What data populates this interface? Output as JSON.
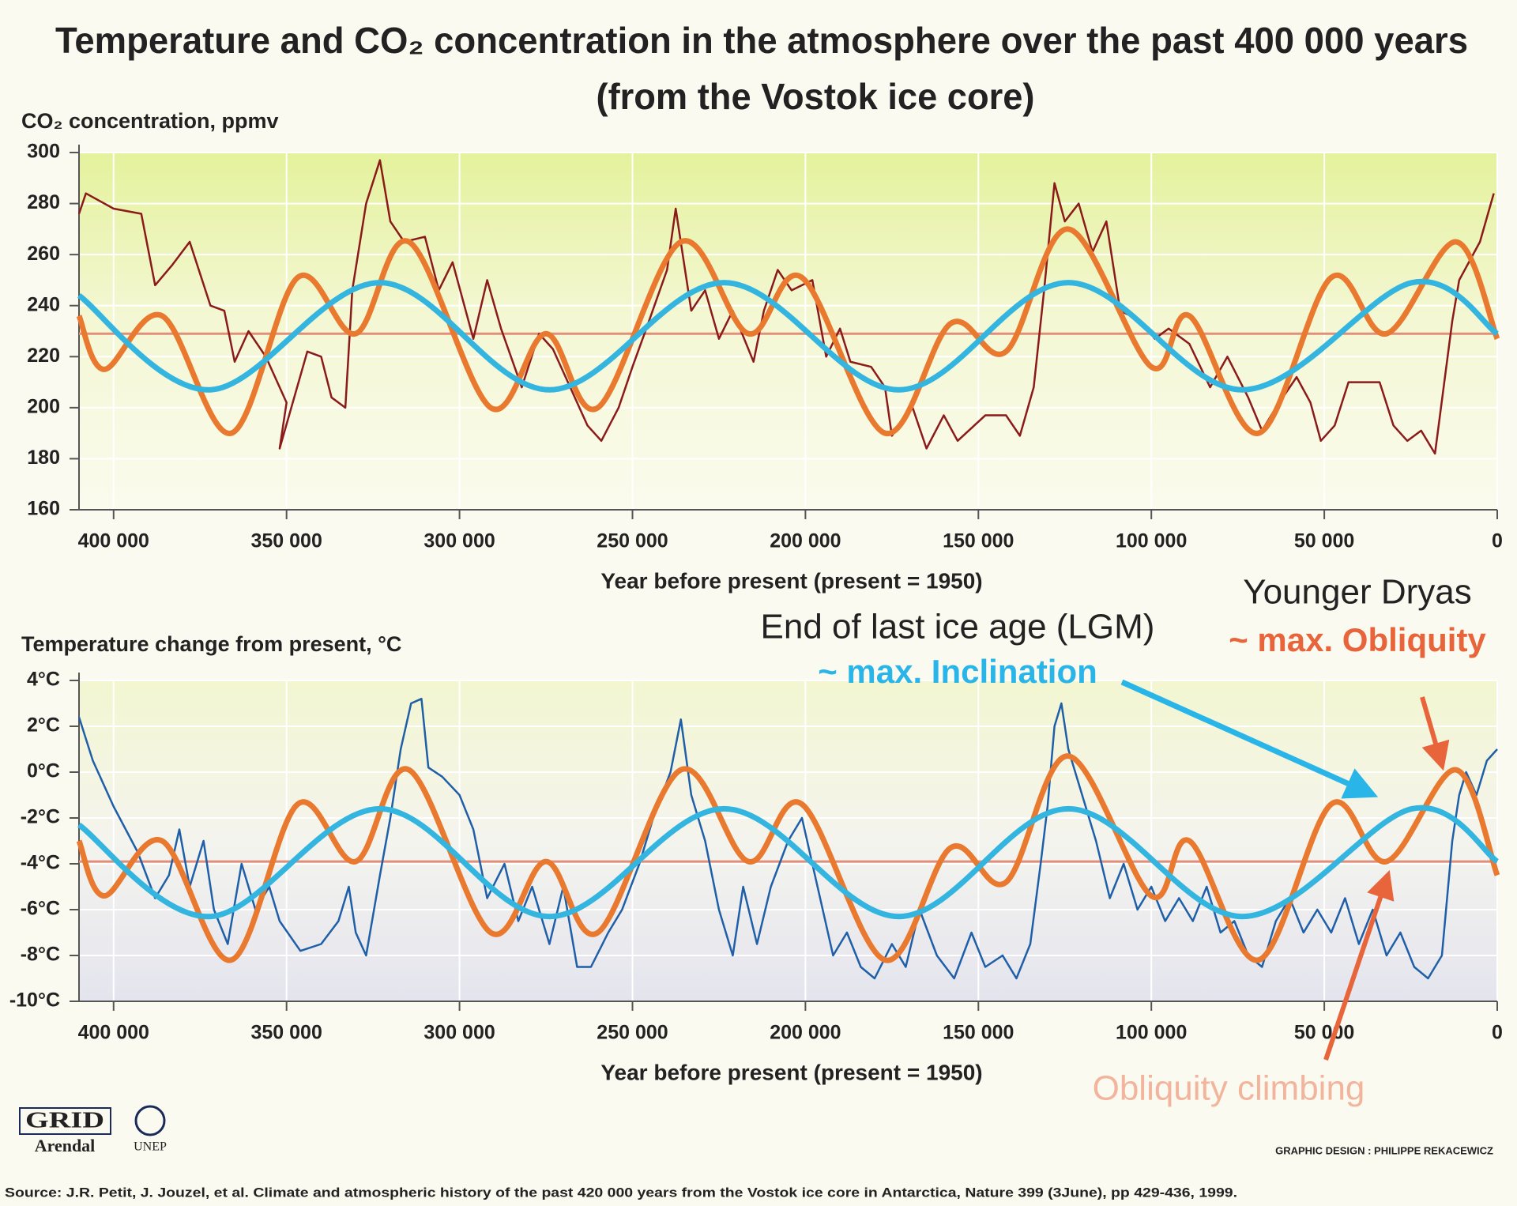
{
  "title": [
    "Temperature and CO₂ concentration in the atmosphere over the past 400 000 years",
    "(from the Vostok ice core)"
  ],
  "chart_data": [
    {
      "type": "line",
      "y_label": "CO₂ concentration, ppmv",
      "x_label": "Year before present (present = 1950)",
      "xlim": [
        410000,
        0
      ],
      "xticks": [
        {
          "value": 400000,
          "label": "400 000"
        },
        {
          "value": 350000,
          "label": "350 000"
        },
        {
          "value": 300000,
          "label": "300 000"
        },
        {
          "value": 250000,
          "label": "250 000"
        },
        {
          "value": 200000,
          "label": "200 000"
        },
        {
          "value": 150000,
          "label": "150 000"
        },
        {
          "value": 100000,
          "label": "100 000"
        },
        {
          "value": 50000,
          "label": "50 000"
        },
        0
      ],
      "ylim": [
        160,
        300
      ],
      "yticks": [
        160,
        180,
        200,
        220,
        240,
        260,
        280,
        300
      ],
      "grid": true,
      "baseline": 229,
      "baseline_color": "#e0907a",
      "series": [
        {
          "color": "#8b1a1a",
          "smooth": false,
          "x": [
            410000,
            408000,
            400000,
            392000,
            388000,
            383000,
            378000,
            372000,
            368000,
            365000,
            361000,
            356000,
            350000,
            352000,
            344000,
            340000,
            337000,
            333000,
            331000,
            327000,
            323000,
            320000,
            316000,
            310000,
            306000,
            302000,
            296000,
            292000,
            288000,
            282000,
            277000,
            273000,
            268000,
            263000,
            259000,
            254000,
            250000,
            246000,
            240000,
            237500,
            233000,
            229000,
            225000,
            221000,
            215000,
            212000,
            208000,
            204000,
            198000,
            194000,
            190000,
            187000,
            181000,
            177000,
            175000,
            169000,
            165000,
            160000,
            156000,
            148000,
            142000,
            138000,
            134000,
            131000,
            128000,
            125000,
            121000,
            117000,
            113000,
            109000,
            103000,
            99000,
            95000,
            89000,
            83000,
            78000,
            72000,
            68000,
            64000,
            58000,
            54000,
            51000,
            47000,
            43000,
            39000,
            34000,
            30000,
            26000,
            22000,
            18000,
            13000,
            11000,
            5000,
            1000
          ],
          "values": [
            276,
            284,
            278,
            276,
            248,
            256,
            265,
            240,
            238,
            218,
            230,
            220,
            202,
            184,
            222,
            220,
            204,
            200,
            246,
            280,
            297,
            273,
            265,
            267,
            246,
            257,
            227,
            250,
            231,
            208,
            229,
            223,
            208,
            193,
            187,
            200,
            216,
            231,
            254,
            278,
            238,
            246,
            227,
            238,
            218,
            238,
            254,
            246,
            250,
            220,
            231,
            218,
            216,
            208,
            189,
            200,
            184,
            197,
            187,
            197,
            197,
            189,
            208,
            246,
            288,
            273,
            280,
            261,
            273,
            238,
            234,
            227,
            231,
            225,
            208,
            220,
            204,
            191,
            200,
            212,
            202,
            187,
            193,
            210,
            210,
            210,
            193,
            187,
            191,
            182,
            234,
            250,
            265,
            284
          ]
        },
        {
          "color": "#e8792f",
          "smooth": true,
          "x": [
            410000,
            402700,
            386000,
            366000,
            346800,
            330000,
            314600,
            291000,
            275000,
            260000,
            236000,
            216500,
            201000,
            177000,
            158000,
            142000,
            124000,
            100000,
            89000,
            69000,
            48000,
            32000,
            12000,
            0
          ],
          "values": [
            236,
            215,
            236,
            190,
            251,
            229,
            265,
            200,
            229,
            200,
            265,
            229,
            251,
            190,
            233,
            222,
            270,
            216,
            236,
            190,
            251,
            229,
            265,
            227
          ]
        },
        {
          "color": "#33b5e0",
          "smooth": true,
          "x": [
            410000,
            372000,
            323000,
            274000,
            223500,
            173000,
            124000,
            73700,
            24700,
            0
          ],
          "values": [
            244,
            207,
            249,
            207,
            249,
            207,
            249,
            207,
            249,
            229
          ]
        }
      ]
    },
    {
      "type": "line",
      "y_label": "Temperature change from present, °C",
      "x_label": "Year before present (present = 1950)",
      "xlim": [
        410000,
        0
      ],
      "xticks": [
        {
          "value": 400000,
          "label": "400 000"
        },
        {
          "value": 350000,
          "label": "350 000"
        },
        {
          "value": 300000,
          "label": "300 000"
        },
        {
          "value": 250000,
          "label": "250 000"
        },
        {
          "value": 200000,
          "label": "200 000"
        },
        {
          "value": 150000,
          "label": "150 000"
        },
        {
          "value": 100000,
          "label": "100 000"
        },
        {
          "value": 50000,
          "label": "50 000"
        },
        0
      ],
      "ylim": [
        -10,
        4
      ],
      "yticks": [
        {
          "value": -10,
          "label": "-10°C"
        },
        {
          "value": -8,
          "label": "-8°C"
        },
        {
          "value": -6,
          "label": "-6°C"
        },
        {
          "value": -4,
          "label": "-4°C"
        },
        {
          "value": -2,
          "label": "-2°C"
        },
        {
          "value": 0,
          "label": "0°C"
        },
        {
          "value": 2,
          "label": "2°C"
        },
        {
          "value": 4,
          "label": "4°C"
        }
      ],
      "grid": true,
      "baseline": -3.9,
      "baseline_color": "#e0907a",
      "series": [
        {
          "color": "#1f5fa8",
          "smooth": false,
          "x": [
            410000,
            406000,
            400000,
            393000,
            388000,
            384000,
            381000,
            378000,
            374000,
            371000,
            367000,
            363000,
            359000,
            355000,
            352000,
            346000,
            340000,
            335000,
            332000,
            330000,
            327000,
            323000,
            320000,
            317000,
            314000,
            311000,
            309000,
            305000,
            300000,
            296000,
            292000,
            287000,
            283000,
            279000,
            274000,
            270000,
            266000,
            262000,
            257000,
            253000,
            248000,
            244000,
            239000,
            236000,
            233000,
            229000,
            225000,
            221000,
            218000,
            214000,
            210000,
            205000,
            201000,
            198000,
            195000,
            192000,
            188000,
            184000,
            180000,
            175000,
            171000,
            167000,
            162000,
            157000,
            152000,
            148000,
            143000,
            139000,
            135000,
            132000,
            130000,
            128000,
            126000,
            124000,
            120000,
            116000,
            112000,
            108000,
            104000,
            100000,
            96000,
            92000,
            88000,
            84000,
            80000,
            76000,
            72000,
            68000,
            64000,
            60000,
            56000,
            52000,
            48000,
            44000,
            40000,
            36000,
            32000,
            28000,
            24000,
            20000,
            16000,
            13000,
            11000,
            9000,
            6000,
            3000,
            0
          ],
          "values": [
            2.4,
            0.5,
            -1.5,
            -3.5,
            -5.5,
            -4.5,
            -2.5,
            -5,
            -3,
            -6,
            -7.5,
            -4,
            -6,
            -5,
            -6.5,
            -7.8,
            -7.5,
            -6.5,
            -5,
            -7,
            -8,
            -4.5,
            -2,
            1,
            3,
            3.2,
            0.2,
            -0.2,
            -1,
            -2.5,
            -5.5,
            -4,
            -6.5,
            -5,
            -7.5,
            -5,
            -8.5,
            -8.5,
            -7,
            -6,
            -4,
            -2,
            0,
            2.3,
            -1,
            -3,
            -6,
            -8,
            -5,
            -7.5,
            -5,
            -3,
            -2,
            -4,
            -6,
            -8,
            -7,
            -8.5,
            -9,
            -7.5,
            -8.5,
            -6,
            -8,
            -9,
            -7,
            -8.5,
            -8,
            -9,
            -7.5,
            -4,
            -1.5,
            2,
            3,
            1,
            -1,
            -3,
            -5.5,
            -4,
            -6,
            -5,
            -6.5,
            -5.5,
            -6.5,
            -5,
            -7,
            -6.5,
            -8,
            -8.5,
            -6.5,
            -5.5,
            -7,
            -6,
            -7,
            -5.5,
            -7.5,
            -6,
            -8,
            -7,
            -8.5,
            -9,
            -8,
            -3,
            -1,
            0,
            -1,
            0.5,
            1
          ]
        },
        {
          "color": "#e8792f",
          "smooth": true,
          "x": [
            410000,
            402700,
            386000,
            366000,
            346800,
            330000,
            314600,
            291000,
            275000,
            260000,
            236000,
            216500,
            201000,
            177000,
            158000,
            142000,
            124000,
            100000,
            89000,
            69000,
            48000,
            32000,
            12000,
            0
          ],
          "values": [
            -3,
            -5.4,
            -3,
            -8.2,
            -1.4,
            -3.9,
            0.1,
            -7,
            -3.9,
            -7,
            0.1,
            -3.9,
            -1.4,
            -8.2,
            -3.3,
            -4.8,
            0.7,
            -5.4,
            -3,
            -8.2,
            -1.4,
            -3.9,
            0.1,
            -4.5
          ]
        },
        {
          "color": "#33b5e0",
          "smooth": true,
          "x": [
            410000,
            372000,
            323000,
            274000,
            223500,
            173000,
            124000,
            73700,
            24700,
            0
          ],
          "values": [
            -2.3,
            -6.3,
            -1.6,
            -6.3,
            -1.6,
            -6.3,
            -1.6,
            -6.3,
            -1.6,
            -3.9
          ]
        }
      ]
    }
  ],
  "annotations": [
    {
      "text": "Younger Dryas",
      "color": "#222222"
    },
    {
      "text": "~ max. Obliquity",
      "color": "#e8643a"
    },
    {
      "text": "End of last ice age (LGM)",
      "color": "#222222"
    },
    {
      "text": "~ max. Inclination",
      "color": "#2ab5e8"
    },
    {
      "text": "Obliquity climbing",
      "color": "#f2b49c"
    }
  ],
  "logos": [
    "GRID",
    "Arendal",
    "UNEP"
  ],
  "credit": "GRAPHIC DESIGN : PHILIPPE REKACEWICZ",
  "source": "Source: J.R. Petit, J. Jouzel, et al. Climate and atmospheric history of the past 420 000 years from the Vostok ice core in Antarctica, Nature 399 (3June), pp 429-436, 1999."
}
